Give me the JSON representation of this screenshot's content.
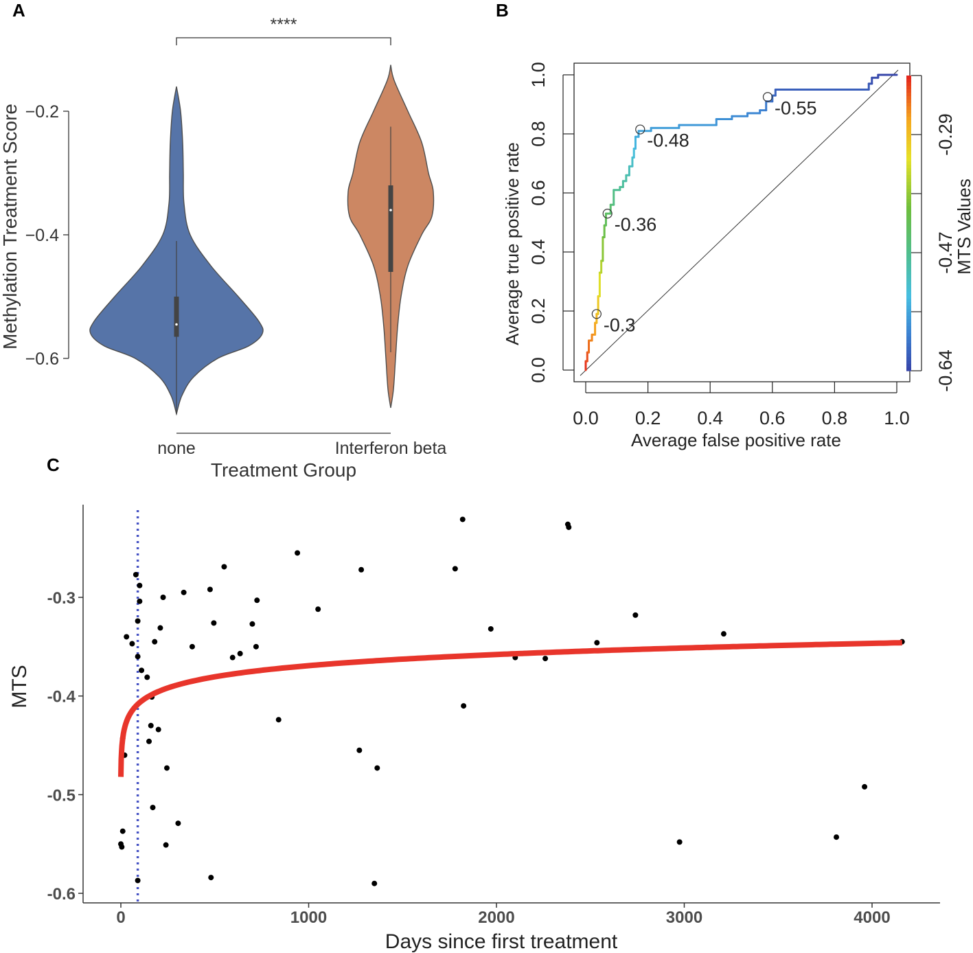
{
  "chart_data": [
    {
      "panel": "A",
      "type": "violin",
      "xlabel": "Treatment Group",
      "ylabel": "Methylation Treatment Score",
      "yticks": [
        -0.2,
        -0.4,
        -0.6
      ],
      "ytick_labels": [
        "−0.2",
        "−0.4",
        "−0.6"
      ],
      "ylim": [
        -0.7,
        -0.16
      ],
      "significance": "****",
      "groups": [
        {
          "name": "none",
          "color": "#5674a8",
          "min": -0.69,
          "max": -0.16,
          "q1": -0.565,
          "median": -0.545,
          "q3": -0.5,
          "whisker_low": -0.69,
          "whisker_high": -0.41
        },
        {
          "name": "Interferon beta",
          "color": "#cc8763",
          "min": -0.68,
          "max": -0.125,
          "q1": -0.46,
          "median": -0.36,
          "q3": -0.32,
          "whisker_low": -0.59,
          "whisker_high": -0.225
        }
      ]
    },
    {
      "panel": "B",
      "type": "line",
      "subtype": "roc",
      "xlabel": "Average false positive rate",
      "ylabel": "Average true positive rate",
      "xticks": [
        "0.0",
        "0.2",
        "0.4",
        "0.6",
        "0.8",
        "1.0"
      ],
      "yticks": [
        "0.0",
        "0.2",
        "0.4",
        "0.6",
        "0.8",
        "1.0"
      ],
      "xlim": [
        0,
        1
      ],
      "ylim": [
        0,
        1
      ],
      "roc_points": [
        [
          0.0,
          0.0
        ],
        [
          0.0,
          0.03
        ],
        [
          0.005,
          0.03
        ],
        [
          0.005,
          0.06
        ],
        [
          0.01,
          0.06
        ],
        [
          0.01,
          0.1
        ],
        [
          0.02,
          0.1
        ],
        [
          0.02,
          0.12
        ],
        [
          0.03,
          0.12
        ],
        [
          0.03,
          0.16
        ],
        [
          0.035,
          0.16
        ],
        [
          0.035,
          0.19
        ],
        [
          0.04,
          0.19
        ],
        [
          0.04,
          0.25
        ],
        [
          0.045,
          0.25
        ],
        [
          0.045,
          0.33
        ],
        [
          0.05,
          0.33
        ],
        [
          0.05,
          0.37
        ],
        [
          0.055,
          0.37
        ],
        [
          0.055,
          0.45
        ],
        [
          0.06,
          0.45
        ],
        [
          0.06,
          0.49
        ],
        [
          0.065,
          0.49
        ],
        [
          0.065,
          0.53
        ],
        [
          0.08,
          0.53
        ],
        [
          0.08,
          0.56
        ],
        [
          0.09,
          0.56
        ],
        [
          0.09,
          0.61
        ],
        [
          0.11,
          0.61
        ],
        [
          0.11,
          0.62
        ],
        [
          0.12,
          0.62
        ],
        [
          0.12,
          0.64
        ],
        [
          0.13,
          0.64
        ],
        [
          0.13,
          0.66
        ],
        [
          0.14,
          0.66
        ],
        [
          0.14,
          0.69
        ],
        [
          0.15,
          0.69
        ],
        [
          0.15,
          0.72
        ],
        [
          0.155,
          0.72
        ],
        [
          0.155,
          0.75
        ],
        [
          0.16,
          0.75
        ],
        [
          0.16,
          0.79
        ],
        [
          0.17,
          0.79
        ],
        [
          0.17,
          0.81
        ],
        [
          0.21,
          0.81
        ],
        [
          0.21,
          0.82
        ],
        [
          0.3,
          0.82
        ],
        [
          0.3,
          0.83
        ],
        [
          0.42,
          0.83
        ],
        [
          0.42,
          0.85
        ],
        [
          0.47,
          0.85
        ],
        [
          0.47,
          0.86
        ],
        [
          0.52,
          0.86
        ],
        [
          0.52,
          0.87
        ],
        [
          0.56,
          0.87
        ],
        [
          0.56,
          0.88
        ],
        [
          0.58,
          0.88
        ],
        [
          0.58,
          0.91
        ],
        [
          0.6,
          0.91
        ],
        [
          0.6,
          0.93
        ],
        [
          0.61,
          0.93
        ],
        [
          0.61,
          0.95
        ],
        [
          0.91,
          0.95
        ],
        [
          0.91,
          0.97
        ],
        [
          0.92,
          0.97
        ],
        [
          0.92,
          0.99
        ],
        [
          0.94,
          0.99
        ],
        [
          0.94,
          1.0
        ],
        [
          1.0,
          1.0
        ]
      ],
      "annotations": [
        {
          "label": "-0.3",
          "fpr": 0.035,
          "tpr": 0.19
        },
        {
          "label": "-0.36",
          "fpr": 0.07,
          "tpr": 0.53
        },
        {
          "label": "-0.48",
          "fpr": 0.175,
          "tpr": 0.815
        },
        {
          "label": "-0.55",
          "fpr": 0.585,
          "tpr": 0.925
        }
      ],
      "colorbar": {
        "title": "MTS Values",
        "ticks": [
          "-0.29",
          "-0.47",
          "-0.64"
        ]
      }
    },
    {
      "panel": "C",
      "type": "scatter",
      "xlabel": "Days since first treatment",
      "ylabel": "MTS",
      "xticks": [
        "0",
        "1000",
        "2000",
        "3000",
        "4000"
      ],
      "yticks": [
        "-0.3",
        "-0.4",
        "-0.5",
        "-0.6"
      ],
      "xlim": [
        -200,
        4370
      ],
      "ylim": [
        -0.61,
        -0.19
      ],
      "vline_x": 90,
      "fit": "logarithmic",
      "points": [
        [
          0,
          -0.55
        ],
        [
          5,
          -0.553
        ],
        [
          10,
          -0.537
        ],
        [
          10,
          -0.443
        ],
        [
          20,
          -0.46
        ],
        [
          30,
          -0.34
        ],
        [
          60,
          -0.347
        ],
        [
          80,
          -0.277
        ],
        [
          90,
          -0.324
        ],
        [
          90,
          -0.36
        ],
        [
          90,
          -0.587
        ],
        [
          100,
          -0.304
        ],
        [
          100,
          -0.288
        ],
        [
          110,
          -0.374
        ],
        [
          140,
          -0.381
        ],
        [
          150,
          -0.446
        ],
        [
          160,
          -0.43
        ],
        [
          165,
          -0.401
        ],
        [
          170,
          -0.513
        ],
        [
          180,
          -0.345
        ],
        [
          200,
          -0.434
        ],
        [
          210,
          -0.331
        ],
        [
          225,
          -0.3
        ],
        [
          240,
          -0.551
        ],
        [
          245,
          -0.473
        ],
        [
          305,
          -0.529
        ],
        [
          335,
          -0.295
        ],
        [
          380,
          -0.35
        ],
        [
          475,
          -0.292
        ],
        [
          480,
          -0.584
        ],
        [
          495,
          -0.326
        ],
        [
          550,
          -0.269
        ],
        [
          595,
          -0.361
        ],
        [
          635,
          -0.357
        ],
        [
          700,
          -0.327
        ],
        [
          720,
          -0.35
        ],
        [
          725,
          -0.303
        ],
        [
          840,
          -0.424
        ],
        [
          940,
          -0.255
        ],
        [
          1050,
          -0.312
        ],
        [
          1270,
          -0.455
        ],
        [
          1280,
          -0.272
        ],
        [
          1350,
          -0.59
        ],
        [
          1365,
          -0.473
        ],
        [
          1780,
          -0.271
        ],
        [
          1820,
          -0.221
        ],
        [
          1825,
          -0.41
        ],
        [
          1970,
          -0.332
        ],
        [
          2100,
          -0.361
        ],
        [
          2260,
          -0.362
        ],
        [
          2380,
          -0.226
        ],
        [
          2385,
          -0.229
        ],
        [
          2535,
          -0.346
        ],
        [
          2740,
          -0.318
        ],
        [
          2975,
          -0.548
        ],
        [
          3210,
          -0.337
        ],
        [
          3810,
          -0.543
        ],
        [
          3960,
          -0.492
        ],
        [
          4160,
          -0.345
        ]
      ]
    }
  ]
}
